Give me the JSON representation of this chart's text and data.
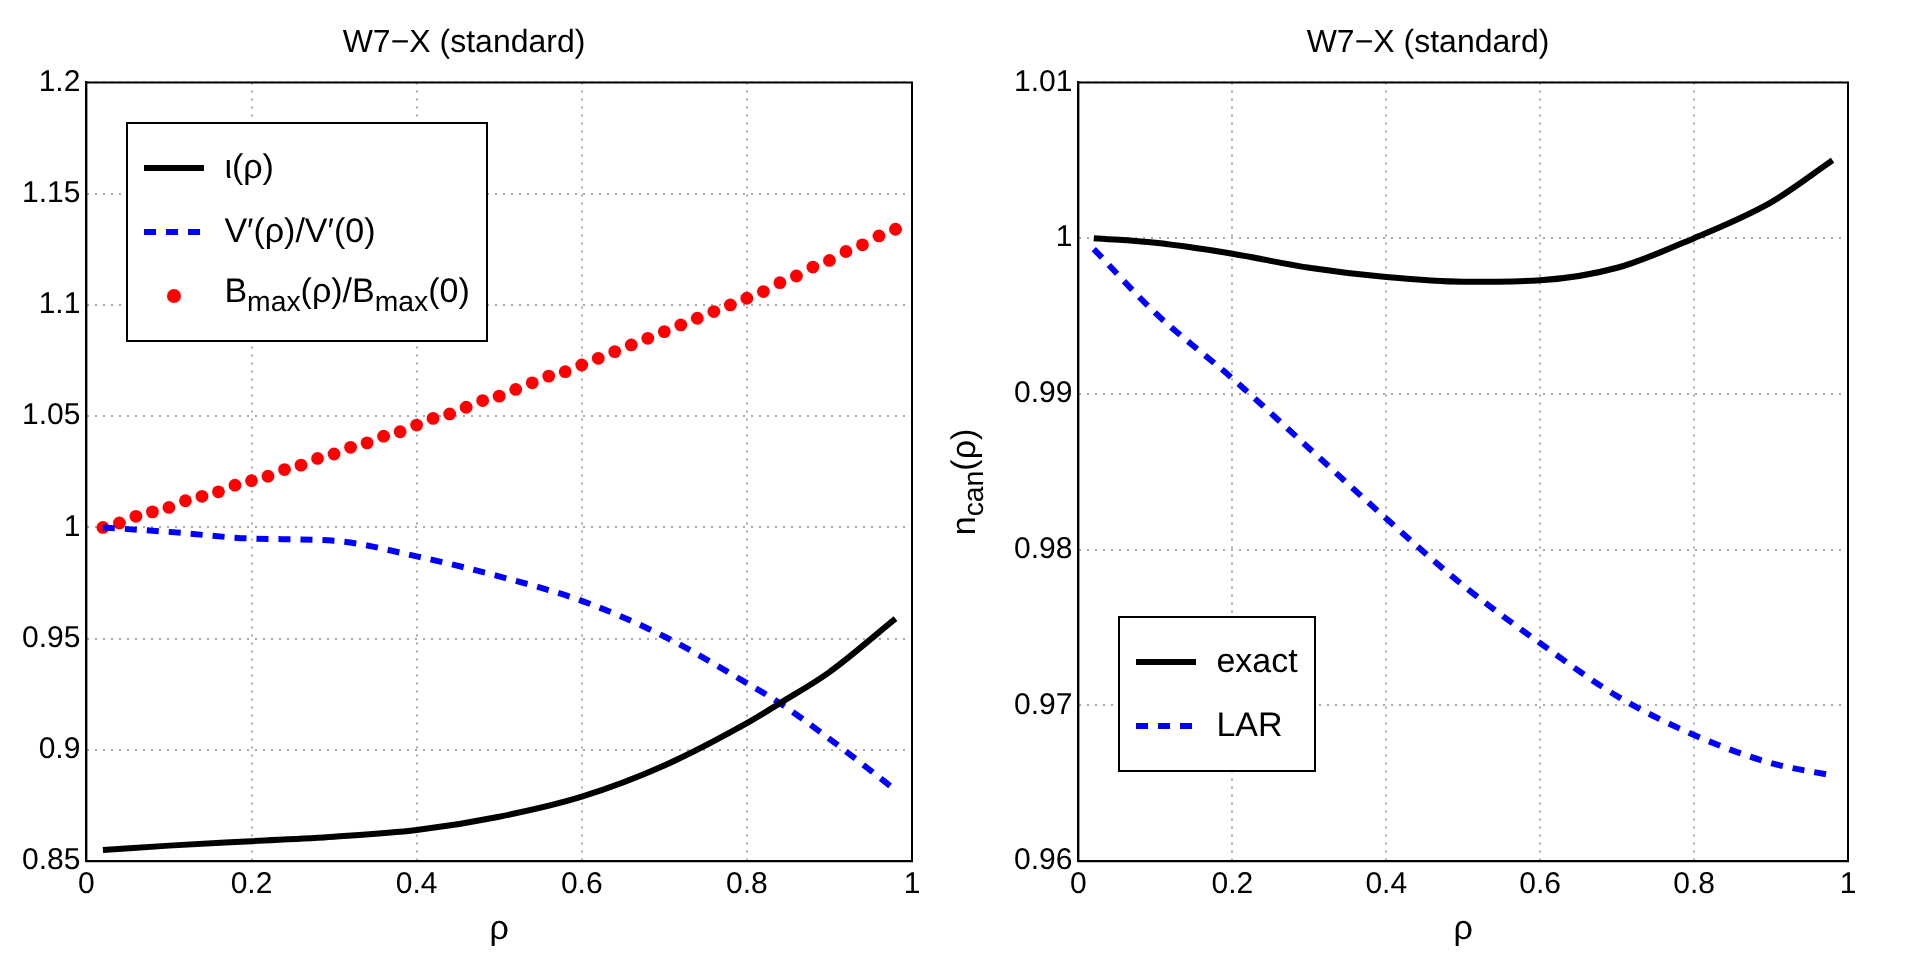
{
  "chart_data": [
    {
      "type": "line",
      "title": "W7−X (standard)",
      "xlabel": "ρ",
      "xlim": [
        0,
        1
      ],
      "xticks": [
        0,
        0.2,
        0.4,
        0.6,
        0.8,
        1
      ],
      "ylim": [
        0.85,
        1.2
      ],
      "yticks": [
        0.85,
        0.9,
        0.95,
        1,
        1.05,
        1.1,
        1.15,
        1.2
      ],
      "grid": true,
      "legend": "top left",
      "series": [
        {
          "name": "ι(ρ)",
          "color": "#000000",
          "line_style": "solid",
          "x": [
            0.02,
            0.1,
            0.2,
            0.3,
            0.4,
            0.5,
            0.6,
            0.7,
            0.8,
            0.84,
            0.9,
            0.98
          ],
          "values": [
            0.855,
            0.857,
            0.859,
            0.861,
            0.864,
            0.87,
            0.879,
            0.893,
            0.912,
            0.921,
            0.935,
            0.959
          ]
        },
        {
          "name": "V′(ρ)/V′(0)",
          "color": "#0000ff",
          "line_style": "dashed",
          "x": [
            0.02,
            0.1,
            0.2,
            0.3,
            0.4,
            0.5,
            0.6,
            0.7,
            0.8,
            0.84,
            0.9,
            0.98
          ],
          "values": [
            1.0,
            0.998,
            0.995,
            0.994,
            0.987,
            0.978,
            0.967,
            0.951,
            0.93,
            0.921,
            0.905,
            0.882
          ]
        },
        {
          "name": "B$_{max}$(ρ)/B$_{max}$(0)",
          "type": "scatter",
          "marker": "circle",
          "color": "#ff0000",
          "x": [
            0.02,
            0.04,
            0.06,
            0.08,
            0.1,
            0.12,
            0.14,
            0.16,
            0.18,
            0.2,
            0.22,
            0.24,
            0.26,
            0.28,
            0.3,
            0.32,
            0.34,
            0.36,
            0.38,
            0.4,
            0.42,
            0.44,
            0.46,
            0.48,
            0.5,
            0.52,
            0.54,
            0.56,
            0.58,
            0.6,
            0.62,
            0.64,
            0.66,
            0.68,
            0.7,
            0.72,
            0.74,
            0.76,
            0.78,
            0.8,
            0.82,
            0.84,
            0.86,
            0.88,
            0.9,
            0.92,
            0.94,
            0.96,
            0.98
          ],
          "values": [
            1.0,
            1.002,
            1.005,
            1.007,
            1.009,
            1.012,
            1.014,
            1.016,
            1.019,
            1.021,
            1.023,
            1.026,
            1.028,
            1.031,
            1.033,
            1.036,
            1.038,
            1.041,
            1.043,
            1.046,
            1.049,
            1.051,
            1.054,
            1.057,
            1.059,
            1.062,
            1.065,
            1.068,
            1.07,
            1.073,
            1.076,
            1.079,
            1.082,
            1.085,
            1.088,
            1.091,
            1.094,
            1.097,
            1.1,
            1.103,
            1.106,
            1.11,
            1.113,
            1.117,
            1.12,
            1.124,
            1.127,
            1.131,
            1.134
          ]
        }
      ]
    },
    {
      "type": "line",
      "title": "W7−X (standard)",
      "xlabel": "ρ",
      "ylabel": "n$_{can}$(ρ)",
      "xlim": [
        0,
        1
      ],
      "xticks": [
        0,
        0.2,
        0.4,
        0.6,
        0.8,
        1
      ],
      "ylim": [
        0.96,
        1.01
      ],
      "yticks": [
        0.96,
        0.97,
        0.98,
        0.99,
        1,
        1.01
      ],
      "grid": true,
      "legend": "bottom left",
      "series": [
        {
          "name": "exact",
          "color": "#000000",
          "line_style": "solid",
          "x": [
            0.02,
            0.1,
            0.2,
            0.3,
            0.4,
            0.5,
            0.6,
            0.7,
            0.8,
            0.9,
            0.98
          ],
          "values": [
            1.0,
            0.9997,
            0.999,
            0.9981,
            0.9975,
            0.9972,
            0.9973,
            0.9981,
            1.0,
            1.0023,
            1.005
          ]
        },
        {
          "name": "LAR",
          "color": "#0000ff",
          "line_style": "dashed",
          "x": [
            0.02,
            0.1,
            0.2,
            0.3,
            0.4,
            0.5,
            0.6,
            0.7,
            0.8,
            0.9,
            0.98
          ],
          "values": [
            0.9993,
            0.9952,
            0.991,
            0.9865,
            0.982,
            0.9777,
            0.974,
            0.9706,
            0.9681,
            0.9663,
            0.9655
          ]
        }
      ]
    }
  ]
}
